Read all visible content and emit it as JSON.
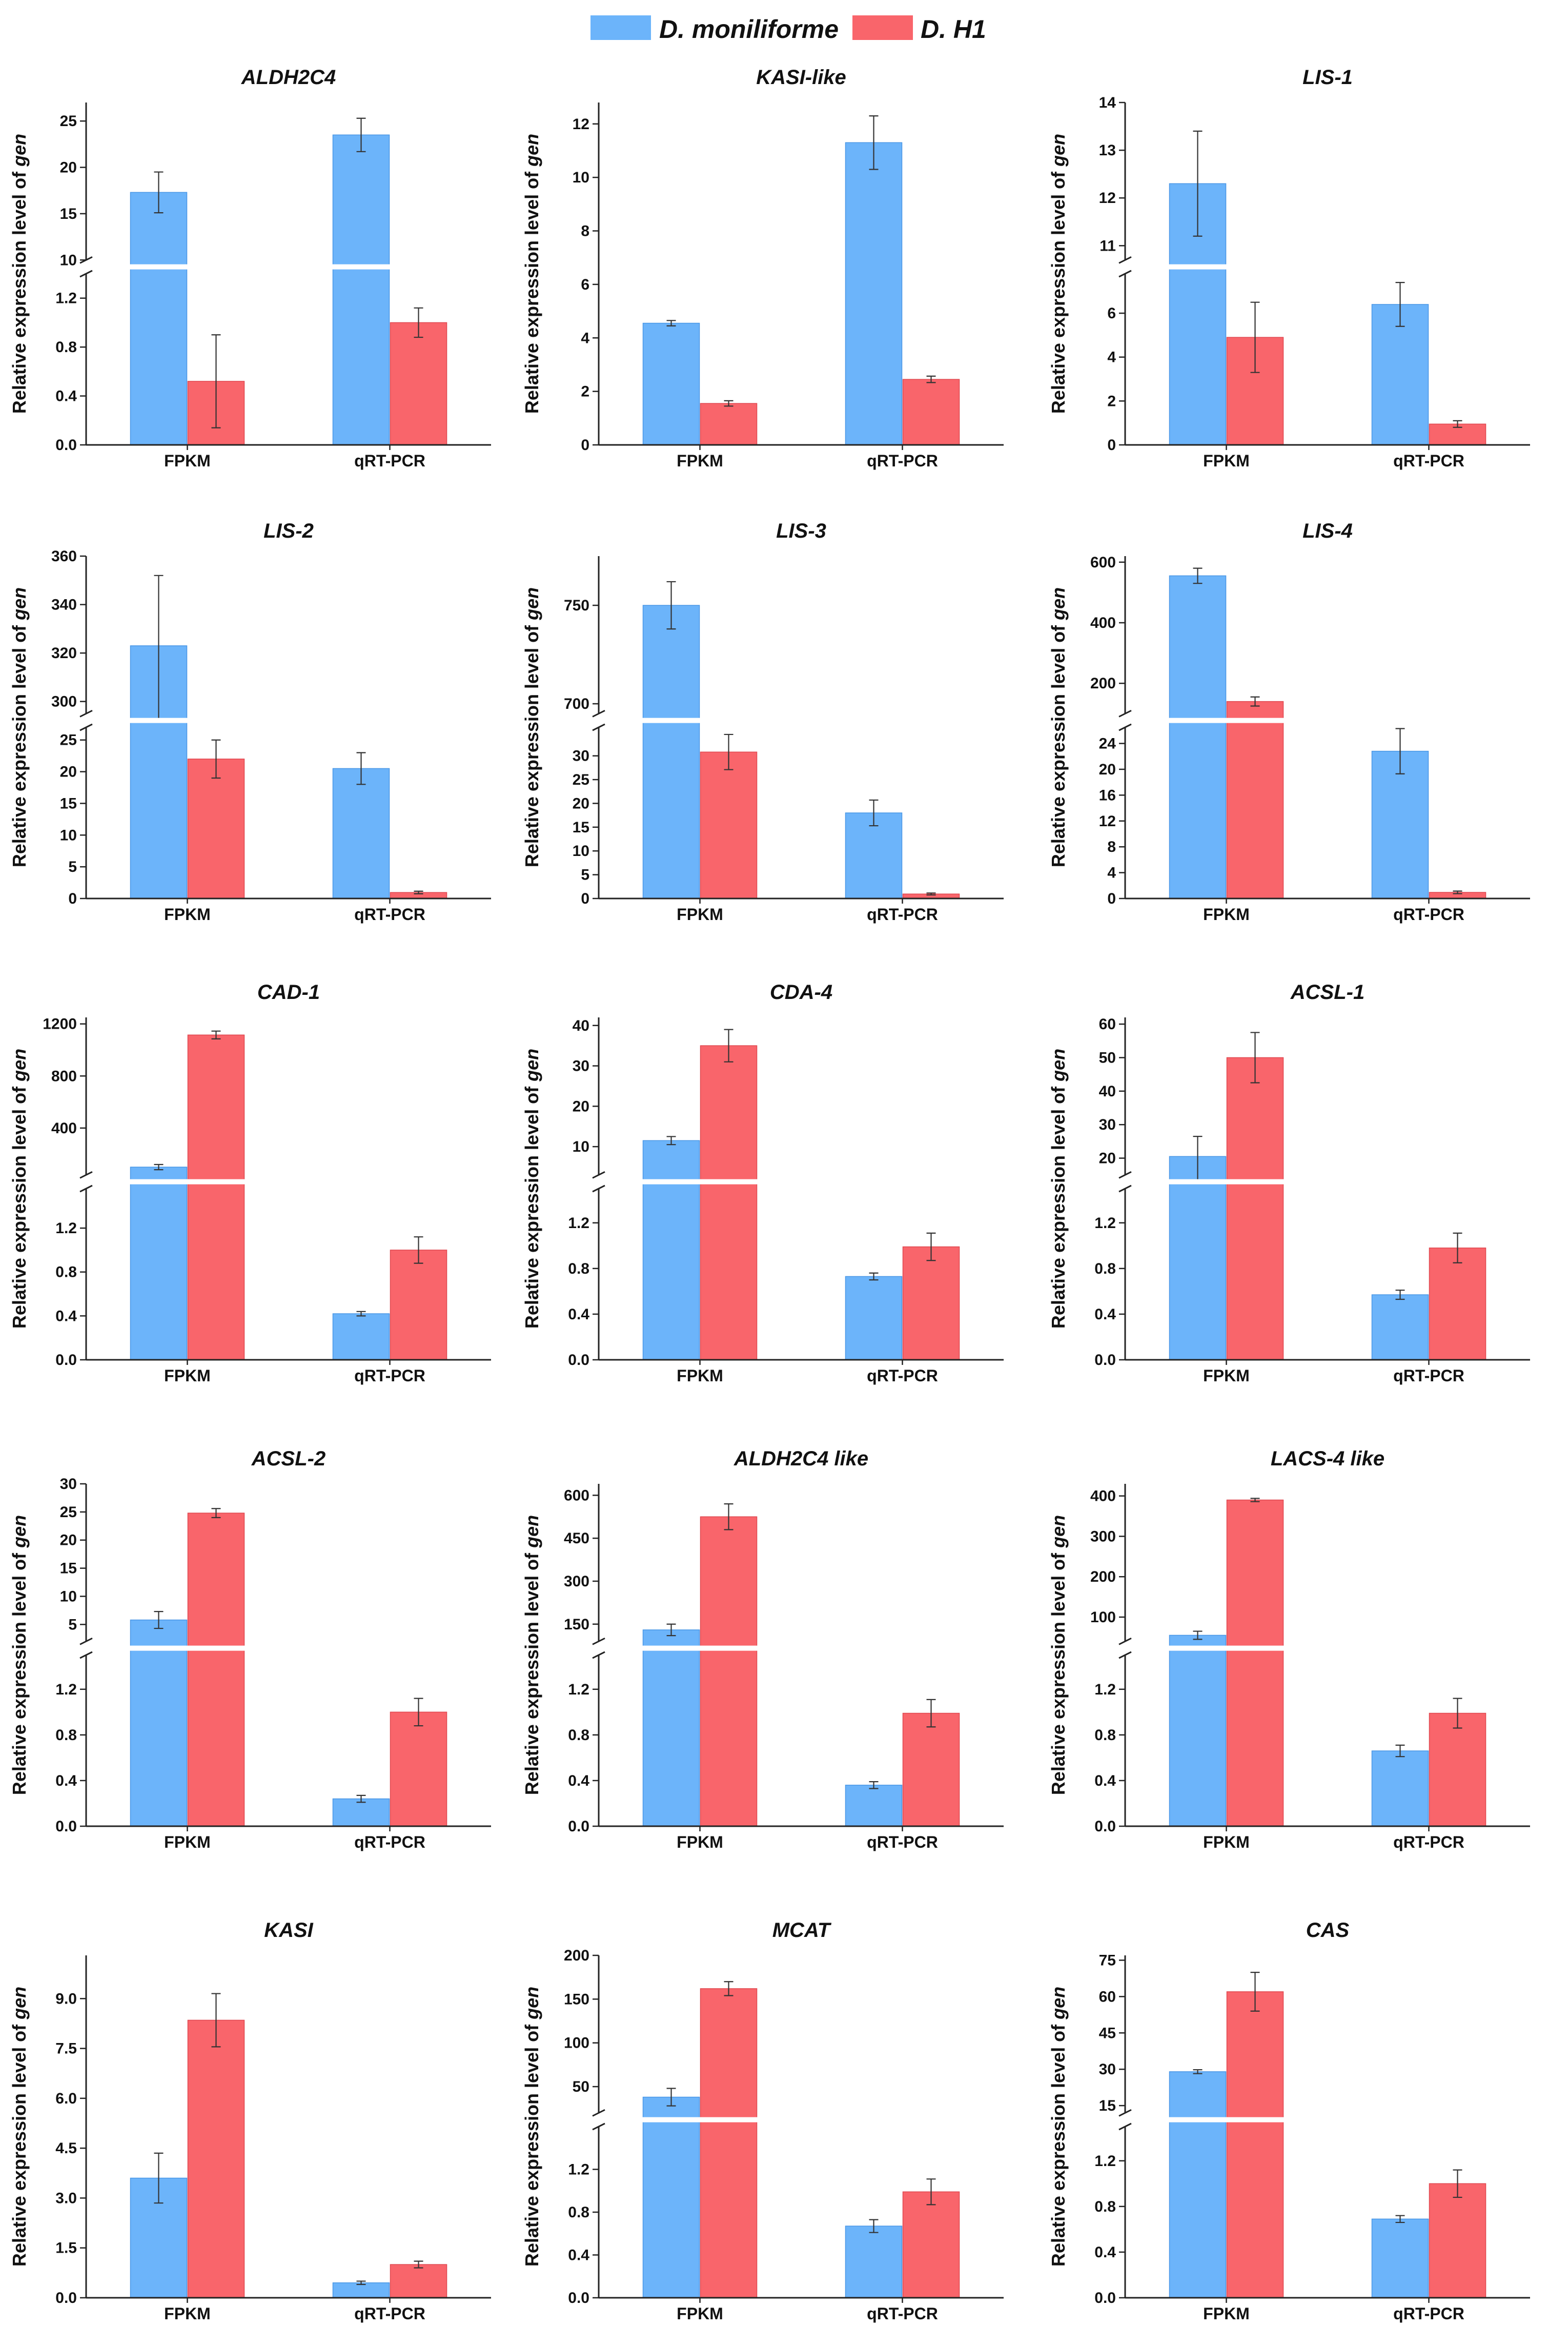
{
  "colors": {
    "dm": "#6cb4fa",
    "dh": "#f9656b",
    "dm_edge": "#4a97e6",
    "dh_edge": "#e04850",
    "axis": "#222222",
    "error": "#333333"
  },
  "legend": [
    {
      "label": "D. moniliforme",
      "color": "#6cb4fa"
    },
    {
      "label": "D. H1",
      "color": "#f9656b"
    }
  ],
  "y_axis_label": {
    "prefix": "Relative expression level of ",
    "italic": "gen"
  },
  "chart_data": [
    {
      "type": "bar",
      "title": "ALDH2C4",
      "categories": [
        "FPKM",
        "qRT-PCR"
      ],
      "series": [
        {
          "name": "D. moniliforme",
          "values": [
            17.3,
            23.5
          ],
          "errors": [
            2.2,
            1.8
          ]
        },
        {
          "name": "D. H1",
          "values": [
            0.52,
            1.0
          ],
          "errors": [
            0.38,
            0.12
          ]
        }
      ],
      "y_broken": true,
      "low": {
        "range": [
          0,
          1.4
        ],
        "ticks": [
          0.0,
          0.4,
          0.8,
          1.2
        ],
        "labels": [
          "0.0",
          "0.4",
          "0.8",
          "1.2"
        ]
      },
      "high": {
        "range": [
          10,
          27
        ],
        "ticks": [
          10,
          15,
          20,
          25
        ],
        "labels": [
          "10",
          "15",
          "20",
          "25"
        ]
      }
    },
    {
      "type": "bar",
      "title": "KASI-like",
      "categories": [
        "FPKM",
        "qRT-PCR"
      ],
      "series": [
        {
          "name": "D. moniliforme",
          "values": [
            4.55,
            11.3
          ],
          "errors": [
            0.1,
            1.0
          ]
        },
        {
          "name": "D. H1",
          "values": [
            1.55,
            2.45
          ],
          "errors": [
            0.1,
            0.12
          ]
        }
      ],
      "y_broken": false,
      "range": [
        0,
        12.8
      ],
      "ticks": [
        0,
        2,
        4,
        6,
        8,
        10,
        12
      ],
      "labels": [
        "0",
        "2",
        "4",
        "6",
        "8",
        "10",
        "12"
      ]
    },
    {
      "type": "bar",
      "title": "LIS-1",
      "categories": [
        "FPKM",
        "qRT-PCR"
      ],
      "series": [
        {
          "name": "D. moniliforme",
          "values": [
            12.3,
            6.4
          ],
          "errors": [
            1.1,
            1.0
          ]
        },
        {
          "name": "D. H1",
          "values": [
            4.9,
            0.95
          ],
          "errors": [
            1.6,
            0.15
          ]
        }
      ],
      "y_broken": true,
      "low": {
        "range": [
          0,
          7.8
        ],
        "ticks": [
          0,
          2,
          4,
          6
        ],
        "labels": [
          "0",
          "2",
          "4",
          "6"
        ]
      },
      "high": {
        "range": [
          10.7,
          14
        ],
        "ticks": [
          11,
          12,
          13,
          14
        ],
        "labels": [
          "11",
          "12",
          "13",
          "14"
        ]
      }
    },
    {
      "type": "bar",
      "title": "LIS-2",
      "categories": [
        "FPKM",
        "qRT-PCR"
      ],
      "series": [
        {
          "name": "D. moniliforme",
          "values": [
            323,
            20.5
          ],
          "errors": [
            29,
            2.5
          ]
        },
        {
          "name": "D. H1",
          "values": [
            22,
            0.95
          ],
          "errors": [
            3,
            0.2
          ]
        }
      ],
      "y_broken": true,
      "low": {
        "range": [
          0,
          27
        ],
        "ticks": [
          0,
          5,
          10,
          15,
          20,
          25
        ],
        "labels": [
          "0",
          "5",
          "10",
          "15",
          "20",
          "25"
        ]
      },
      "high": {
        "range": [
          295,
          360
        ],
        "ticks": [
          300,
          320,
          340,
          360
        ],
        "labels": [
          "300",
          "320",
          "340",
          "360"
        ]
      }
    },
    {
      "type": "bar",
      "title": "LIS-3",
      "categories": [
        "FPKM",
        "qRT-PCR"
      ],
      "series": [
        {
          "name": "D. moniliforme",
          "values": [
            750,
            18
          ],
          "errors": [
            12,
            2.7
          ]
        },
        {
          "name": "D. H1",
          "values": [
            30.8,
            0.95
          ],
          "errors": [
            3.7,
            0.2
          ]
        }
      ],
      "y_broken": true,
      "low": {
        "range": [
          0,
          36
        ],
        "ticks": [
          0,
          5,
          10,
          15,
          20,
          25,
          30
        ],
        "labels": [
          "0",
          "5",
          "10",
          "15",
          "20",
          "25",
          "30"
        ]
      },
      "high": {
        "range": [
          695,
          775
        ],
        "ticks": [
          700,
          750
        ],
        "labels": [
          "700",
          "750"
        ]
      }
    },
    {
      "type": "bar",
      "title": "LIS-4",
      "categories": [
        "FPKM",
        "qRT-PCR"
      ],
      "series": [
        {
          "name": "D. moniliforme",
          "values": [
            555,
            22.8
          ],
          "errors": [
            25,
            3.5
          ]
        },
        {
          "name": "D. H1",
          "values": [
            140,
            0.95
          ],
          "errors": [
            15,
            0.2
          ]
        }
      ],
      "y_broken": true,
      "low": {
        "range": [
          0,
          26.5
        ],
        "ticks": [
          0,
          4,
          8,
          12,
          16,
          20,
          24
        ],
        "labels": [
          "0",
          "4",
          "8",
          "12",
          "16",
          "20",
          "24"
        ]
      },
      "high": {
        "range": [
          100,
          620
        ],
        "ticks": [
          200,
          400,
          600
        ],
        "labels": [
          "200",
          "400",
          "600"
        ]
      }
    },
    {
      "type": "bar",
      "title": "CAD-1",
      "categories": [
        "FPKM",
        "qRT-PCR"
      ],
      "series": [
        {
          "name": "D. moniliforme",
          "values": [
            100,
            0.42
          ],
          "errors": [
            20,
            0.02
          ]
        },
        {
          "name": "D. H1",
          "values": [
            1115,
            1.0
          ],
          "errors": [
            30,
            0.12
          ]
        }
      ],
      "y_broken": true,
      "low": {
        "range": [
          0,
          1.56
        ],
        "ticks": [
          0.0,
          0.4,
          0.8,
          1.2
        ],
        "labels": [
          "0.0",
          "0.4",
          "0.8",
          "1.2"
        ]
      },
      "high": {
        "range": [
          40,
          1250
        ],
        "ticks": [
          400,
          800,
          1200
        ],
        "labels": [
          "400",
          "800",
          "1200"
        ]
      }
    },
    {
      "type": "bar",
      "title": "CDA-4",
      "categories": [
        "FPKM",
        "qRT-PCR"
      ],
      "series": [
        {
          "name": "D. moniliforme",
          "values": [
            11.5,
            0.73
          ],
          "errors": [
            1.0,
            0.03
          ]
        },
        {
          "name": "D. H1",
          "values": [
            35,
            0.99
          ],
          "errors": [
            4,
            0.12
          ]
        }
      ],
      "y_broken": true,
      "low": {
        "range": [
          0,
          1.5
        ],
        "ticks": [
          0.0,
          0.4,
          0.8,
          1.2
        ],
        "labels": [
          "0.0",
          "0.4",
          "0.8",
          "1.2"
        ]
      },
      "high": {
        "range": [
          3,
          42
        ],
        "ticks": [
          10,
          20,
          30,
          40
        ],
        "labels": [
          "10",
          "20",
          "30",
          "40"
        ]
      }
    },
    {
      "type": "bar",
      "title": "ACSL-1",
      "categories": [
        "FPKM",
        "qRT-PCR"
      ],
      "series": [
        {
          "name": "D. moniliforme",
          "values": [
            20.5,
            0.57
          ],
          "errors": [
            6,
            0.04
          ]
        },
        {
          "name": "D. H1",
          "values": [
            50,
            0.98
          ],
          "errors": [
            7.5,
            0.13
          ]
        }
      ],
      "y_broken": true,
      "low": {
        "range": [
          0,
          1.5
        ],
        "ticks": [
          0.0,
          0.4,
          0.8,
          1.2
        ],
        "labels": [
          "0.0",
          "0.4",
          "0.8",
          "1.2"
        ]
      },
      "high": {
        "range": [
          15,
          62
        ],
        "ticks": [
          20,
          30,
          40,
          50,
          60
        ],
        "labels": [
          "20",
          "30",
          "40",
          "50",
          "60"
        ]
      }
    },
    {
      "type": "bar",
      "title": "ACSL-2",
      "categories": [
        "FPKM",
        "qRT-PCR"
      ],
      "series": [
        {
          "name": "D. moniliforme",
          "values": [
            5.8,
            0.24
          ],
          "errors": [
            1.5,
            0.03
          ]
        },
        {
          "name": "D. H1",
          "values": [
            24.8,
            1.0
          ],
          "errors": [
            0.8,
            0.12
          ]
        }
      ],
      "y_broken": true,
      "low": {
        "range": [
          0,
          1.5
        ],
        "ticks": [
          0.0,
          0.4,
          0.8,
          1.2
        ],
        "labels": [
          "0.0",
          "0.4",
          "0.8",
          "1.2"
        ]
      },
      "high": {
        "range": [
          2,
          30
        ],
        "ticks": [
          5,
          10,
          15,
          20,
          25,
          30
        ],
        "labels": [
          "5",
          "10",
          "15",
          "20",
          "25",
          "30"
        ]
      }
    },
    {
      "type": "bar",
      "title": "ALDH2C4 like",
      "categories": [
        "FPKM",
        "qRT-PCR"
      ],
      "series": [
        {
          "name": "D. moniliforme",
          "values": [
            130,
            0.36
          ],
          "errors": [
            20,
            0.03
          ]
        },
        {
          "name": "D. H1",
          "values": [
            525,
            0.99
          ],
          "errors": [
            45,
            0.12
          ]
        }
      ],
      "y_broken": true,
      "low": {
        "range": [
          0,
          1.5
        ],
        "ticks": [
          0.0,
          0.4,
          0.8,
          1.2
        ],
        "labels": [
          "0.0",
          "0.4",
          "0.8",
          "1.2"
        ]
      },
      "high": {
        "range": [
          90,
          640
        ],
        "ticks": [
          150,
          300,
          450,
          600
        ],
        "labels": [
          "150",
          "300",
          "450",
          "600"
        ]
      }
    },
    {
      "type": "bar",
      "title": "LACS-4 like",
      "categories": [
        "FPKM",
        "qRT-PCR"
      ],
      "series": [
        {
          "name": "D. moniliforme",
          "values": [
            55,
            0.66
          ],
          "errors": [
            10,
            0.05
          ]
        },
        {
          "name": "D. H1",
          "values": [
            390,
            0.99
          ],
          "errors": [
            4,
            0.13
          ]
        }
      ],
      "y_broken": true,
      "low": {
        "range": [
          0,
          1.5
        ],
        "ticks": [
          0.0,
          0.4,
          0.8,
          1.2
        ],
        "labels": [
          "0.0",
          "0.4",
          "0.8",
          "1.2"
        ]
      },
      "high": {
        "range": [
          40,
          430
        ],
        "ticks": [
          100,
          200,
          300,
          400
        ],
        "labels": [
          "100",
          "200",
          "300",
          "400"
        ]
      }
    },
    {
      "type": "bar",
      "title": "KASI",
      "categories": [
        "FPKM",
        "qRT-PCR"
      ],
      "series": [
        {
          "name": "D. moniliforme",
          "values": [
            3.6,
            0.45
          ],
          "errors": [
            0.75,
            0.05
          ]
        },
        {
          "name": "D. H1",
          "values": [
            8.35,
            1.0
          ],
          "errors": [
            0.8,
            0.1
          ]
        }
      ],
      "y_broken": false,
      "range": [
        0,
        10.3
      ],
      "ticks": [
        0.0,
        1.5,
        3.0,
        4.5,
        6.0,
        7.5,
        9.0
      ],
      "labels": [
        "0.0",
        "1.5",
        "3.0",
        "4.5",
        "6.0",
        "7.5",
        "9.0"
      ]
    },
    {
      "type": "bar",
      "title": "MCAT",
      "categories": [
        "FPKM",
        "qRT-PCR"
      ],
      "series": [
        {
          "name": "D. moniliforme",
          "values": [
            38,
            0.67
          ],
          "errors": [
            10,
            0.06
          ]
        },
        {
          "name": "D. H1",
          "values": [
            162,
            0.99
          ],
          "errors": [
            8,
            0.12
          ]
        }
      ],
      "y_broken": true,
      "low": {
        "range": [
          0,
          1.6
        ],
        "ticks": [
          0.0,
          0.4,
          0.8,
          1.2
        ],
        "labels": [
          "0.0",
          "0.4",
          "0.8",
          "1.2"
        ]
      },
      "high": {
        "range": [
          20,
          200
        ],
        "ticks": [
          50,
          100,
          150,
          200
        ],
        "labels": [
          "50",
          "100",
          "150",
          "200"
        ]
      }
    },
    {
      "type": "bar",
      "title": "CAS",
      "categories": [
        "FPKM",
        "qRT-PCR"
      ],
      "series": [
        {
          "name": "D. moniliforme",
          "values": [
            29,
            0.69
          ],
          "errors": [
            0.8,
            0.03
          ]
        },
        {
          "name": "D. H1",
          "values": [
            62,
            1.0
          ],
          "errors": [
            8,
            0.12
          ]
        }
      ],
      "y_broken": true,
      "low": {
        "range": [
          0,
          1.5
        ],
        "ticks": [
          0.0,
          0.4,
          0.8,
          1.2
        ],
        "labels": [
          "0.0",
          "0.4",
          "0.8",
          "1.2"
        ]
      },
      "high": {
        "range": [
          12,
          77
        ],
        "ticks": [
          15,
          30,
          45,
          60,
          75
        ],
        "labels": [
          "15",
          "30",
          "45",
          "60",
          "75"
        ]
      }
    }
  ]
}
